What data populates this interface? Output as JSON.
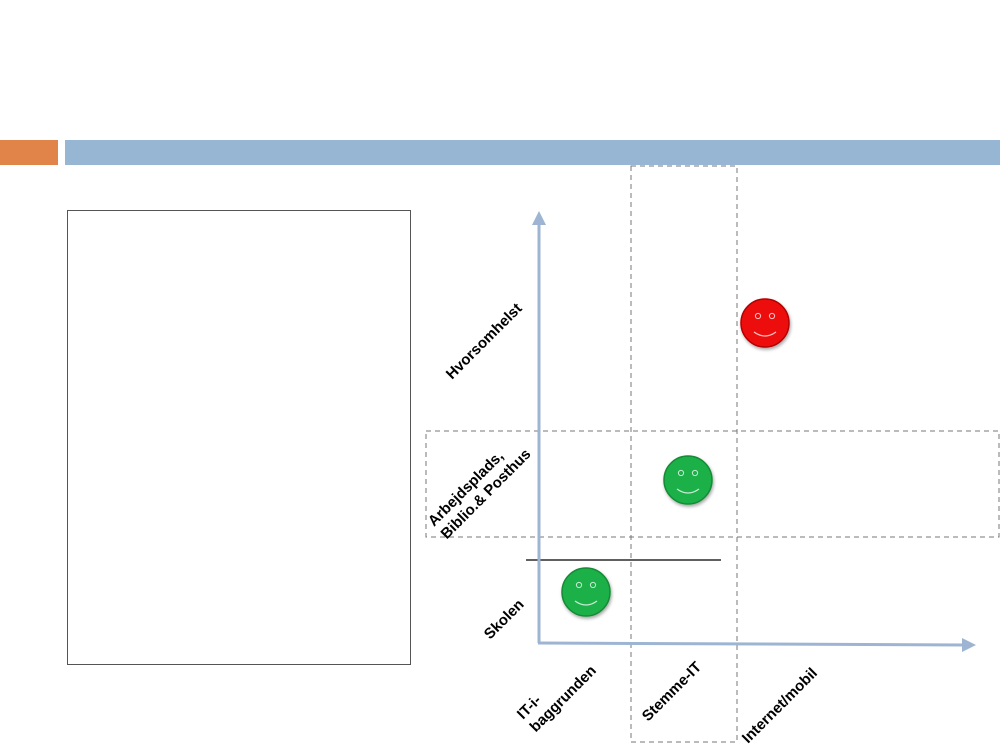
{
  "header": {
    "accent_color": "#E0844A",
    "bar_color": "#97B6D4"
  },
  "text_box": {
    "content": ""
  },
  "diagram": {
    "axis_color": "#9DB5D2",
    "y_labels": {
      "bottom": "Skolen",
      "middle_line1": "Arbejdsplads,",
      "middle_line2": "Biblio.& Posthus",
      "top": "Hvorsomhelst"
    },
    "x_labels": {
      "first_line1": "IT-i-",
      "first_line2": "baggrunden",
      "second": "Stemme-IT",
      "third": "Internet/mobil"
    },
    "smileys": [
      {
        "column": "IT-i-baggrunden",
        "row": "Skolen",
        "color": "green",
        "fill": "#1FB04A"
      },
      {
        "column": "Stemme-IT",
        "row": "Arbejdsplads, Biblio.& Posthus",
        "color": "green",
        "fill": "#1FB04A"
      },
      {
        "column": "Internet/mobil",
        "row": "Hvorsomhelst",
        "color": "red",
        "fill": "#EE1111"
      }
    ]
  }
}
